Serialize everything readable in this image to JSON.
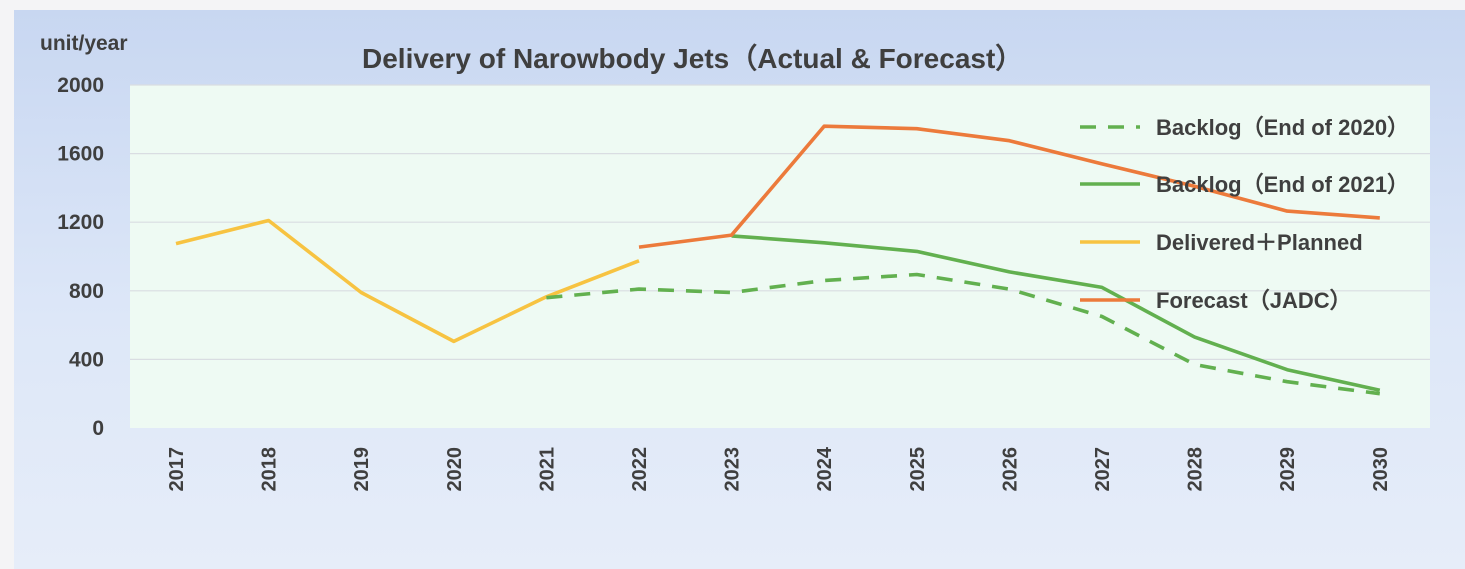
{
  "chart_data": {
    "type": "line",
    "title": "Delivery of Narowbody Jets（Actual & Forecast）",
    "ylabel": "unit/year",
    "xlabel": "",
    "ylim": [
      0,
      2000
    ],
    "yticks": [
      0,
      400,
      800,
      1200,
      1600,
      2000
    ],
    "categories": [
      "2017",
      "2018",
      "2019",
      "2020",
      "2021",
      "2022",
      "2023",
      "2024",
      "2025",
      "2026",
      "2027",
      "2028",
      "2029",
      "2030"
    ],
    "grid": true,
    "legend_position": "top-right",
    "series": [
      {
        "name": "Backlog（End of 2020）",
        "color": "#62b04f",
        "style": "dashed",
        "values": [
          null,
          null,
          null,
          null,
          760,
          810,
          790,
          860,
          895,
          810,
          650,
          370,
          270,
          200
        ]
      },
      {
        "name": "Backlog（End of 2021）",
        "color": "#62b04f",
        "style": "solid",
        "values": [
          null,
          null,
          null,
          null,
          null,
          null,
          1120,
          1080,
          1030,
          910,
          820,
          530,
          340,
          220
        ]
      },
      {
        "name": "Delivered＋Planned",
        "color": "#f7c341",
        "style": "solid",
        "values": [
          1075,
          1210,
          790,
          505,
          765,
          975,
          null,
          null,
          null,
          null,
          null,
          null,
          null,
          null
        ]
      },
      {
        "name": "Forecast（JADC）",
        "color": "#ec7a3b",
        "style": "solid",
        "values": [
          null,
          null,
          null,
          null,
          null,
          1055,
          1125,
          1760,
          1745,
          1675,
          1540,
          1410,
          1265,
          1225
        ]
      }
    ]
  }
}
